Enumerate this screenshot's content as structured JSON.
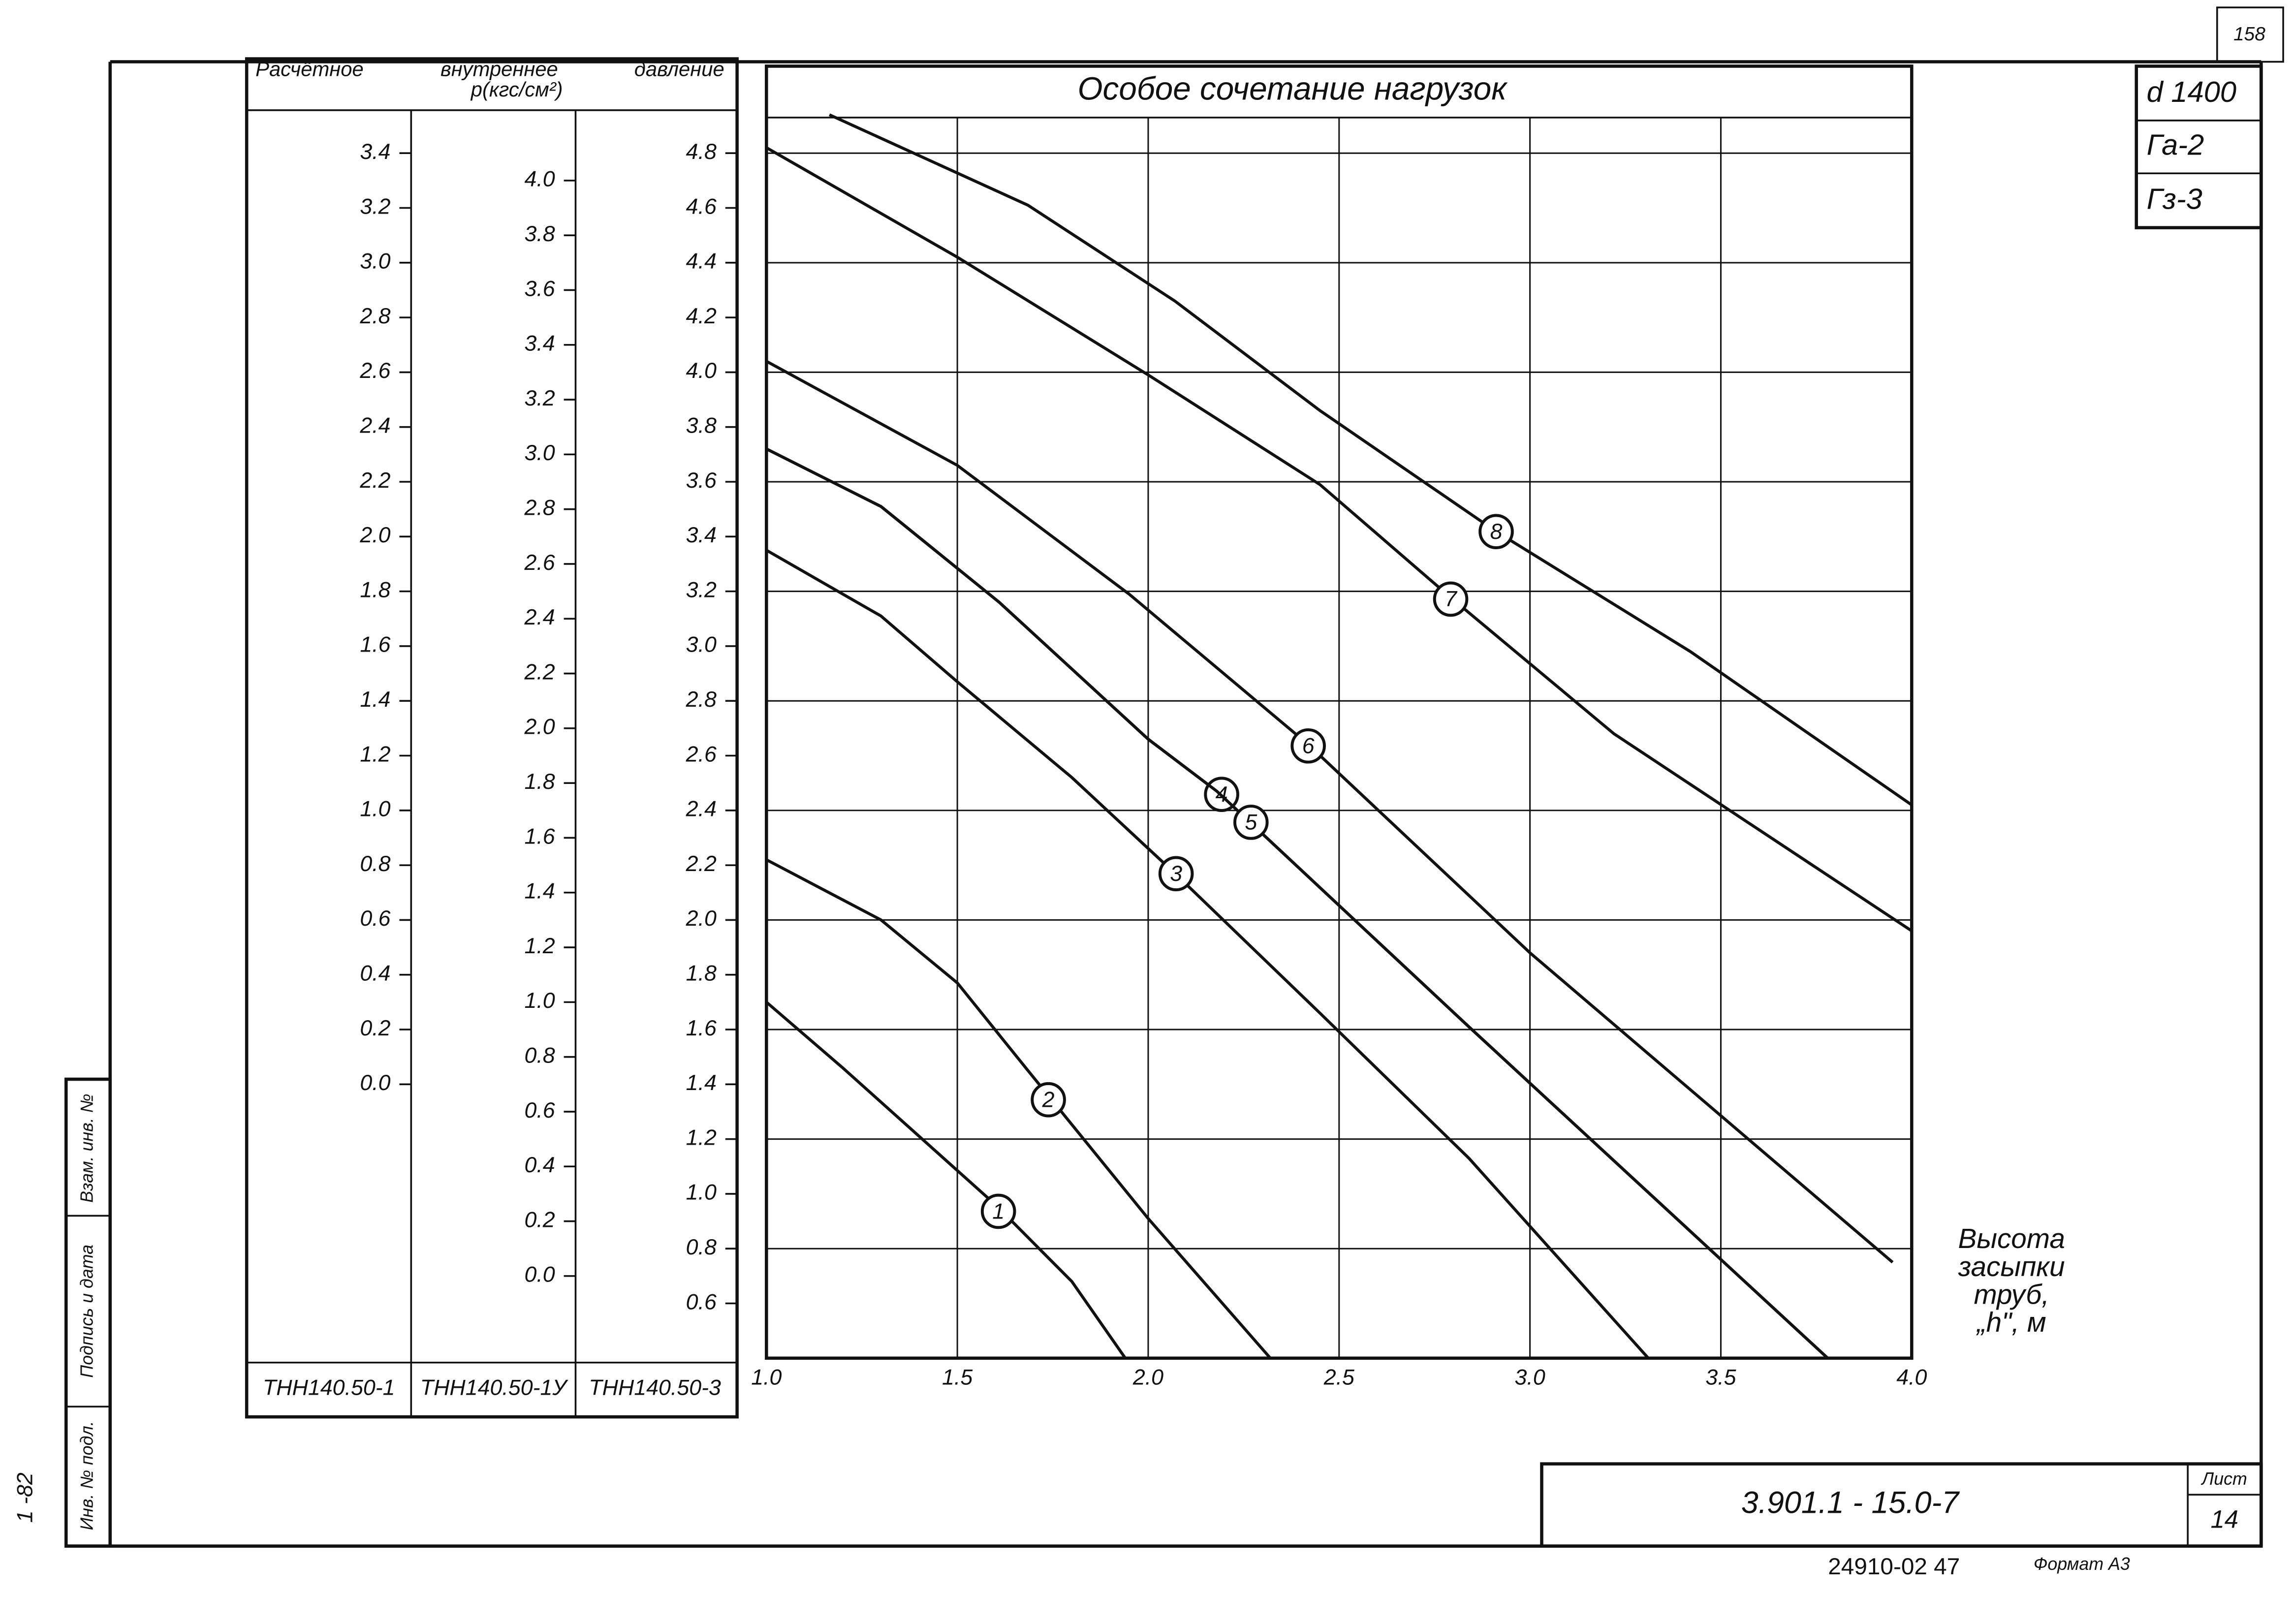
{
  "chart_data": {
    "type": "line",
    "title": "Особое сочетание нагрузок",
    "xlabel": [
      "Высота",
      "засыпки",
      "труб,",
      "„h\", м"
    ],
    "xlim": [
      1.0,
      4.0
    ],
    "xticks": [
      {
        "value": 1.0,
        "label": "1.0"
      },
      1.5,
      {
        "value": 2.0,
        "label": "2.0"
      },
      2.5,
      {
        "value": 3.0,
        "label": "3.0"
      },
      3.5,
      {
        "value": 4.0,
        "label": "4.0"
      }
    ],
    "ylim": [
      0.4,
      4.93
    ],
    "grid": true,
    "color": "#111",
    "series": [
      {
        "name": "1",
        "x": [
          1.0,
          1.2,
          1.4,
          1.6,
          1.8,
          1.94
        ],
        "values": [
          1.7,
          1.46,
          1.21,
          0.96,
          0.68,
          0.4
        ]
      },
      {
        "name": "2",
        "x": [
          1.0,
          1.3,
          1.5,
          1.685,
          2.0,
          2.32
        ],
        "values": [
          2.22,
          2.0,
          1.77,
          1.45,
          0.91,
          0.4
        ]
      },
      {
        "name": "3",
        "x": [
          1.0,
          1.3,
          1.5,
          1.8,
          2.07,
          2.45,
          2.84,
          3.31
        ],
        "values": [
          3.35,
          3.11,
          2.87,
          2.52,
          2.17,
          1.66,
          1.13,
          0.4
        ]
      },
      {
        "name": "4",
        "x": [
          1.0,
          1.3,
          1.61,
          2.0,
          2.18,
          2.84,
          3.78
        ],
        "values": [
          3.72,
          3.51,
          3.16,
          2.66,
          2.47,
          1.61,
          0.4
        ]
      },
      {
        "name": "5",
        "x": [
          1.0,
          1.3,
          1.61,
          2.0,
          2.18,
          2.84,
          3.78
        ],
        "values": [
          3.72,
          3.51,
          3.16,
          2.66,
          2.47,
          1.61,
          0.4
        ]
      },
      {
        "name": "6",
        "x": [
          1.0,
          1.5,
          1.95,
          2.42,
          3.0,
          3.95
        ],
        "values": [
          4.04,
          3.66,
          3.19,
          2.64,
          1.88,
          0.75
        ]
      },
      {
        "name": "7",
        "x": [
          1.0,
          1.5,
          2.0,
          2.45,
          2.79,
          3.22,
          4.0
        ],
        "values": [
          4.82,
          4.42,
          3.99,
          3.59,
          3.18,
          2.68,
          1.96
        ]
      },
      {
        "name": "8",
        "x": [
          1.165,
          1.685,
          2.07,
          2.45,
          2.91,
          3.42,
          4.0
        ],
        "values": [
          4.94,
          4.61,
          4.26,
          3.86,
          3.42,
          2.98,
          2.42
        ]
      }
    ],
    "scales_title": [
      "Расчётное",
      "внутреннее",
      "давление"
    ],
    "scales_unit": "p(кгс/см²)",
    "scales": [
      {
        "name": "ТНН140.50-1",
        "ylim": [
          -1.0,
          3.53
        ],
        "yticks": [
          3.4,
          3.2,
          {
            "value": 3.0,
            "label": "3.0"
          },
          2.8,
          2.6,
          2.4,
          2.2,
          {
            "value": 2.0,
            "label": "2.0"
          },
          1.8,
          1.6,
          1.4,
          1.2,
          {
            "value": 1.0,
            "label": "1.0"
          },
          0.8,
          0.6,
          0.4,
          0.2,
          {
            "value": 0.0,
            "label": "0.0"
          }
        ]
      },
      {
        "name": "ТНН140.50-1У",
        "ylim": [
          -0.3,
          4.23
        ],
        "yticks": [
          {
            "value": 4.0,
            "label": "4.0"
          },
          3.8,
          3.6,
          3.4,
          3.2,
          {
            "value": 3.0,
            "label": "3.0"
          },
          2.8,
          2.6,
          2.4,
          2.2,
          {
            "value": 2.0,
            "label": "2.0"
          },
          1.8,
          1.6,
          1.4,
          1.2,
          {
            "value": 1.0,
            "label": "1.0"
          },
          0.8,
          0.6,
          0.4,
          0.2,
          {
            "value": 0.0,
            "label": "0.0"
          }
        ]
      },
      {
        "name": "ТНН140.50-3",
        "ylim": [
          0.4,
          4.93
        ],
        "yticks": [
          4.8,
          4.6,
          4.4,
          4.2,
          {
            "value": 4.0,
            "label": "4.0"
          },
          3.8,
          3.6,
          3.4,
          3.2,
          {
            "value": 3.0,
            "label": "3.0"
          },
          2.8,
          2.6,
          2.4,
          2.2,
          {
            "value": 2.0,
            "label": "2.0"
          },
          1.8,
          1.6,
          1.4,
          1.2,
          {
            "value": 1.0,
            "label": "1.0"
          },
          0.8,
          0.6
        ]
      }
    ]
  },
  "frame": {
    "sheet_number": "158",
    "stamp": [
      "d 1400",
      "Га-2",
      "Гз-3"
    ],
    "document_code": "3.901.1 - 15.0-7",
    "sheet_label": "Лист",
    "sheet": "14",
    "footer": "24910-02 47",
    "format": "Формат А3",
    "side": [
      "Инв. № подл.",
      "Подпись и дата",
      "Взам. инв. №"
    ],
    "side_code": "1 -82"
  }
}
